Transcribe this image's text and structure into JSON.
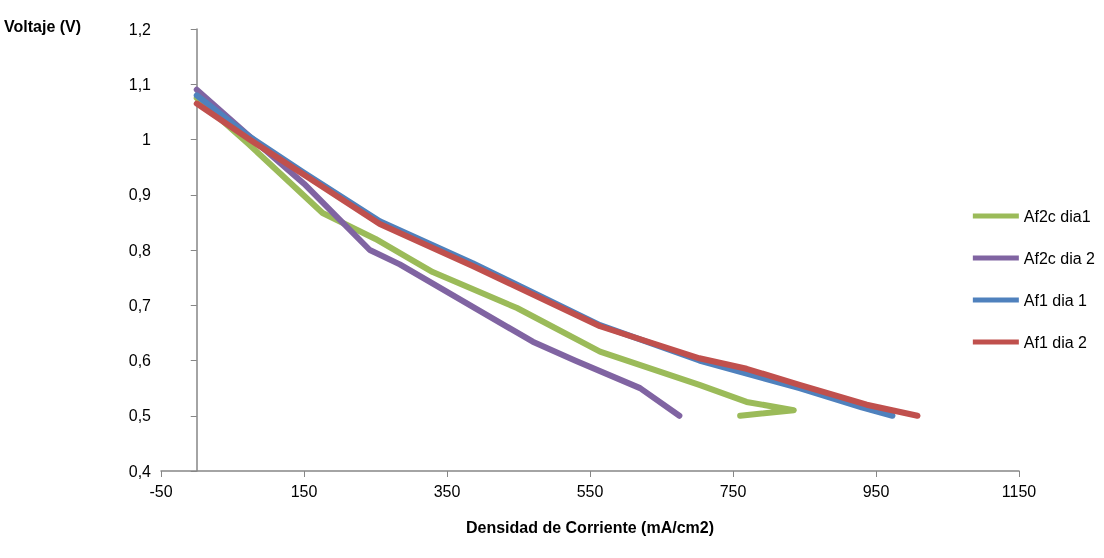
{
  "chart_data": {
    "type": "line",
    "xlabel": "Densidad de Corriente (mA/cm2)",
    "ylabel": "Voltaje (V)",
    "xlim": [
      -50,
      1150
    ],
    "xticks": [
      -50,
      150,
      350,
      550,
      750,
      950,
      1150
    ],
    "ylim": [
      0.4,
      1.2
    ],
    "yticks": [
      {
        "value": 0.4,
        "label": "0,4"
      },
      {
        "value": 0.5,
        "label": "0,5"
      },
      {
        "value": 0.6,
        "label": "0,6"
      },
      {
        "value": 0.7,
        "label": "0,7"
      },
      {
        "value": 0.8,
        "label": "0,8"
      },
      {
        "value": 0.9,
        "label": "0,9"
      },
      {
        "value": 1.0,
        "label": "1"
      },
      {
        "value": 1.1,
        "label": "1,1"
      },
      {
        "value": 1.2,
        "label": "1,2"
      }
    ],
    "grid": false,
    "legend": "right",
    "marker": "none",
    "line_style": "solid",
    "series": [
      {
        "name": "Af2c dia1",
        "color": "#9bbb59",
        "x": [
          0,
          74,
          176,
          250,
          330,
          448,
          564,
          703,
          769,
          835,
          760
        ],
        "values": [
          1.075,
          0.99,
          0.867,
          0.82,
          0.76,
          0.695,
          0.616,
          0.556,
          0.525,
          0.51,
          0.5
        ]
      },
      {
        "name": "Af2c dia 2",
        "color": "#8064a2",
        "x": [
          0,
          70,
          150,
          242,
          284,
          470,
          529,
          620,
          675
        ],
        "values": [
          1.09,
          1.01,
          0.92,
          0.8,
          0.774,
          0.634,
          0.6,
          0.55,
          0.5
        ]
      },
      {
        "name": "Af1 dia 1",
        "color": "#4f81bd",
        "x": [
          0,
          74,
          150,
          256,
          386,
          564,
          703,
          843,
          930,
          973
        ],
        "values": [
          1.08,
          1.005,
          0.94,
          0.852,
          0.776,
          0.664,
          0.6,
          0.55,
          0.515,
          0.5
        ]
      },
      {
        "name": "Af1 dia 2",
        "color": "#c0504d",
        "x": [
          0,
          74,
          150,
          256,
          386,
          564,
          703,
          769,
          843,
          937,
          1008
        ],
        "values": [
          1.065,
          1.0,
          0.936,
          0.847,
          0.771,
          0.662,
          0.604,
          0.585,
          0.556,
          0.52,
          0.5
        ]
      }
    ]
  }
}
